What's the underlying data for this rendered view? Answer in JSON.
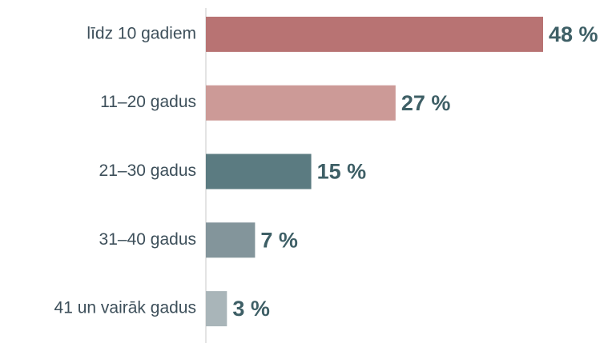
{
  "chart_data": {
    "type": "barh",
    "categories": [
      "līdz 10 gadiem",
      "11–20 gadus",
      "21–30 gadus",
      "31–40 gadus",
      "41 un vairāk gadus"
    ],
    "values": [
      48,
      27,
      15,
      7,
      3
    ],
    "value_labels": [
      "48 %",
      "27 %",
      "15 %",
      "7 %",
      "3 %"
    ],
    "colors": [
      "#b87373",
      "#cc9a97",
      "#5b7b81",
      "#83959b",
      "#a9b5b9"
    ],
    "xlim": [
      0,
      48
    ]
  }
}
